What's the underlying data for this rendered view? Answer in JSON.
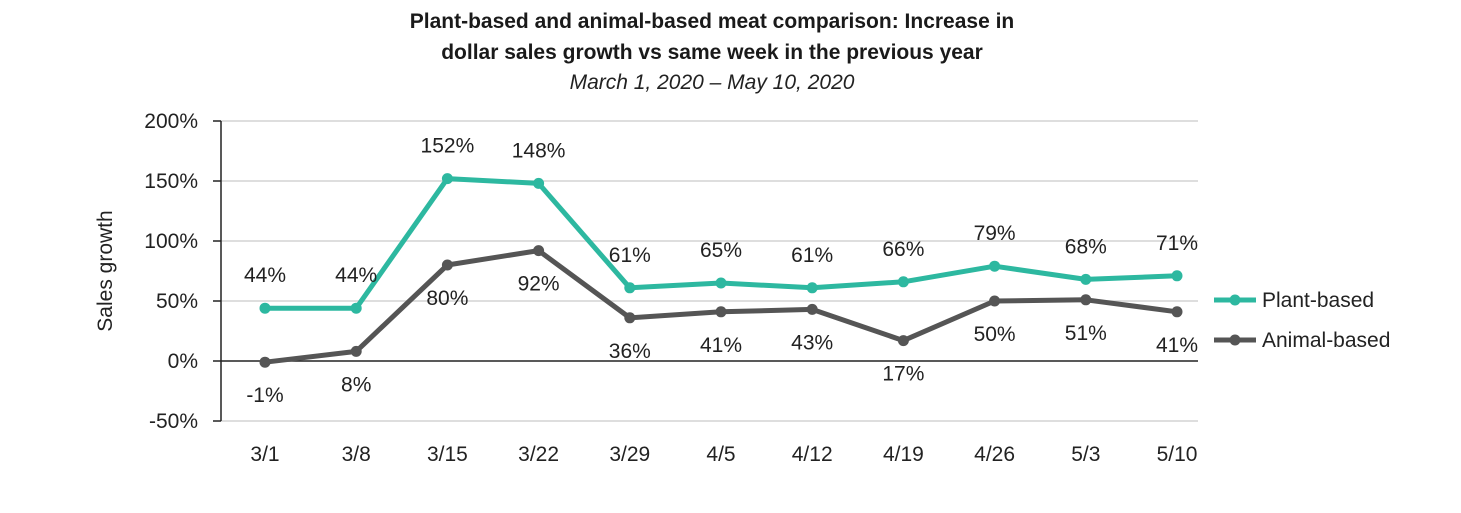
{
  "chart_data": {
    "type": "line",
    "title_line1": "Plant-based and animal-based meat comparison: Increase in",
    "title_line2": "dollar sales growth vs same week in the previous year",
    "subtitle": "March 1, 2020 – May 10, 2020",
    "xlabel": "",
    "ylabel": "Sales growth",
    "categories": [
      "3/1",
      "3/8",
      "3/15",
      "3/22",
      "3/29",
      "4/5",
      "4/12",
      "4/19",
      "4/26",
      "5/3",
      "5/10"
    ],
    "ylim": [
      -50,
      200
    ],
    "yticks": [
      -50,
      0,
      50,
      100,
      150,
      200
    ],
    "ytick_labels": [
      "-50%",
      "0%",
      "50%",
      "100%",
      "150%",
      "200%"
    ],
    "grid": true,
    "legend_position": "right",
    "series": [
      {
        "name": "Plant-based",
        "color": "#2db8a0",
        "values": [
          44,
          44,
          152,
          148,
          61,
          65,
          61,
          66,
          79,
          68,
          71
        ],
        "labels": [
          "44%",
          "44%",
          "152%",
          "148%",
          "61%",
          "65%",
          "61%",
          "66%",
          "79%",
          "68%",
          "71%"
        ]
      },
      {
        "name": "Animal-based",
        "color": "#555555",
        "values": [
          -1,
          8,
          80,
          92,
          36,
          41,
          43,
          17,
          50,
          51,
          41
        ],
        "labels": [
          "-1%",
          "8%",
          "80%",
          "92%",
          "36%",
          "41%",
          "43%",
          "17%",
          "50%",
          "51%",
          "41%"
        ]
      }
    ]
  }
}
